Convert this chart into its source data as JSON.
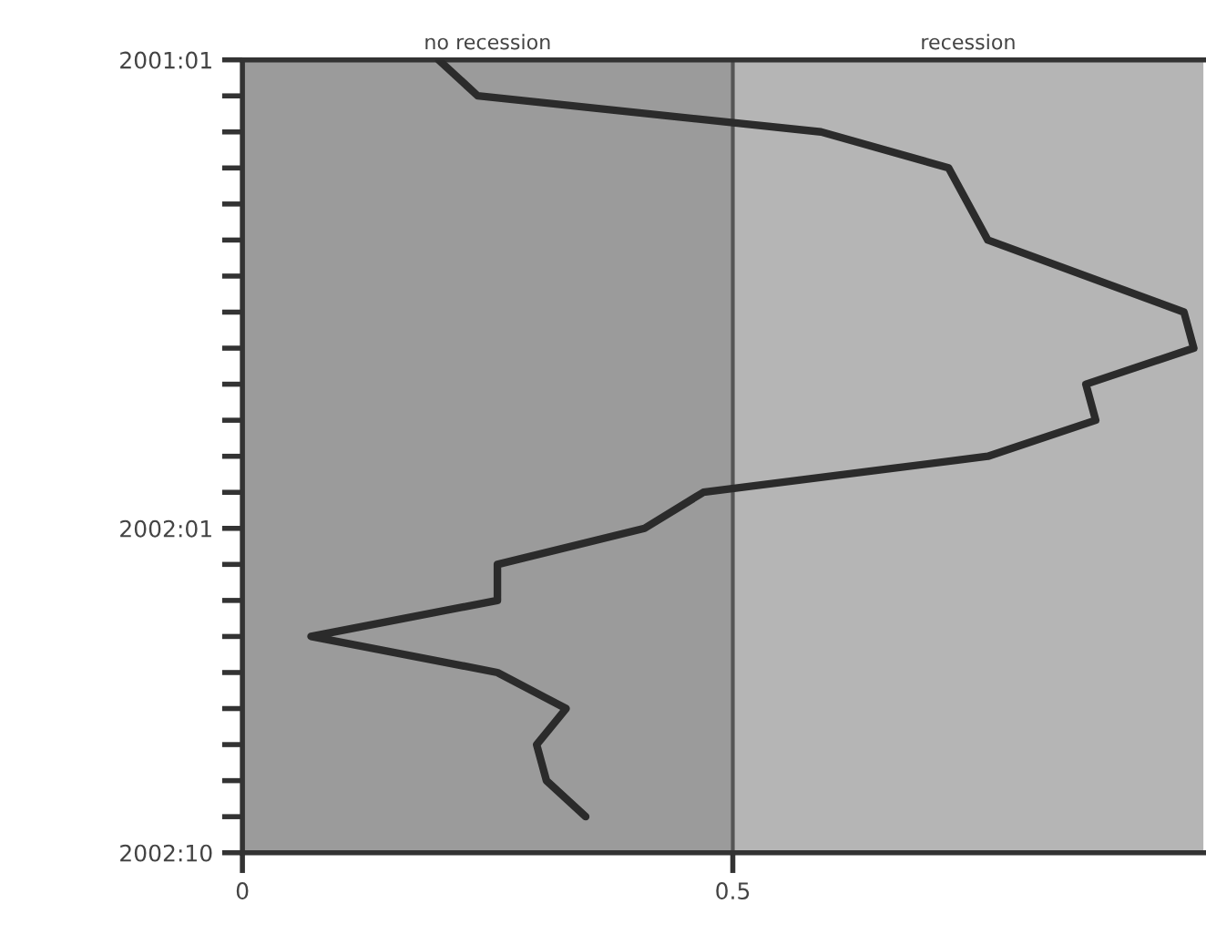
{
  "chart_data": {
    "type": "line",
    "orientation": "horizontal",
    "categories": [
      "2001:01",
      null,
      null,
      null,
      null,
      null,
      null,
      null,
      null,
      null,
      null,
      null,
      null,
      "2002:01",
      null,
      null,
      null,
      null,
      null,
      null,
      null,
      null,
      "2002:10"
    ],
    "series": [
      {
        "color": "#2b2b2b",
        "values": [
          0.2,
          0.24,
          0.59,
          0.72,
          null,
          0.76,
          null,
          0.96,
          0.97,
          0.86,
          0.87,
          0.76,
          0.47,
          0.41,
          0.26,
          0.26,
          0.07,
          0.26,
          0.33,
          0.3,
          0.31,
          0.35,
          null
        ]
      }
    ],
    "xlim": [
      0,
      0.98
    ],
    "xticks": [
      0,
      0.5
    ],
    "bands": [
      {
        "axis": "x",
        "from": 0,
        "to": 0.5,
        "label": "no recession",
        "color": "#9b9b9b"
      },
      {
        "axis": "x",
        "from": 0.5,
        "to": 0.98,
        "label": "recession",
        "color": "#b5b5b5"
      }
    ],
    "ref_lines": [
      {
        "axis": "x",
        "value": 0.5,
        "color": "#555555"
      }
    ],
    "grid": false,
    "legend": false,
    "marker": "none",
    "line_style": "solid"
  }
}
